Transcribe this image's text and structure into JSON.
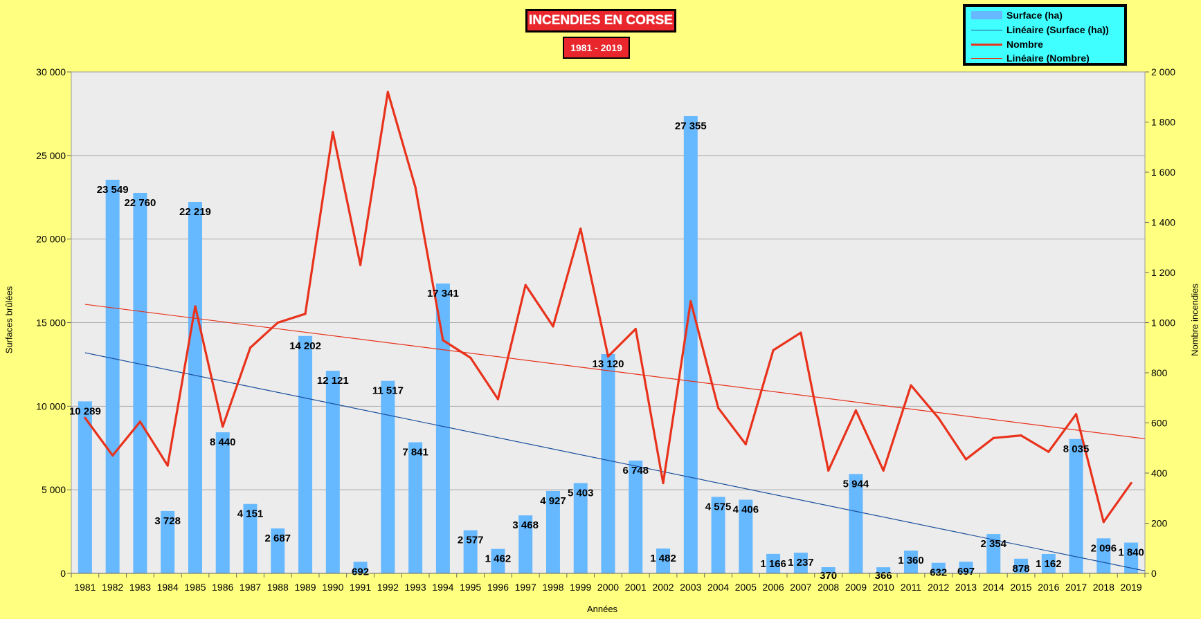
{
  "chart_data": {
    "type": "bar",
    "title": "INCENDIES EN CORSE",
    "subtitle": "1981 - 2019",
    "xlabel": "Années",
    "ylabel": "Surfaces brûlées",
    "ylabel_right": "Nombre incendies",
    "ylim": [
      0,
      30000
    ],
    "ylim_right": [
      0,
      2000
    ],
    "yticks": [
      "0",
      "5 000",
      "10 000",
      "15 000",
      "20 000",
      "25 000",
      "30 000"
    ],
    "yticks_right": [
      "0",
      "200",
      "400",
      "600",
      "800",
      "1 000",
      "1 200",
      "1 400",
      "1 600",
      "1 800",
      "2 000"
    ],
    "grid": true,
    "legend_position": "top-right",
    "categories": [
      "1981",
      "1982",
      "1983",
      "1984",
      "1985",
      "1986",
      "1987",
      "1988",
      "1989",
      "1990",
      "1991",
      "1992",
      "1993",
      "1994",
      "1995",
      "1996",
      "1997",
      "1998",
      "1999",
      "2000",
      "2001",
      "2002",
      "2003",
      "2004",
      "2005",
      "2006",
      "2007",
      "2008",
      "2009",
      "2010",
      "2011",
      "2012",
      "2013",
      "2014",
      "2015",
      "2016",
      "2017",
      "2018",
      "2019"
    ],
    "series": [
      {
        "name": "Surface (ha)",
        "type": "bar",
        "axis": "left",
        "color": "#66b8ff",
        "values": [
          10289,
          23549,
          22760,
          3728,
          22219,
          8440,
          4151,
          2687,
          14202,
          12121,
          692,
          11517,
          7841,
          17341,
          2577,
          1462,
          3468,
          4927,
          5403,
          13120,
          6748,
          1482,
          27355,
          4575,
          4406,
          1166,
          1237,
          370,
          5944,
          366,
          1360,
          632,
          697,
          2354,
          878,
          1162,
          8035,
          2096,
          1840
        ],
        "labels": [
          "10 289",
          "23 549",
          "22 760",
          "3 728",
          "22 219",
          "8 440",
          "4 151",
          "2 687",
          "14 202",
          "12 121",
          "692",
          "11 517",
          "7 841",
          "17 341",
          "2 577",
          "1 462",
          "3 468",
          "4 927",
          "5 403",
          "13 120",
          "6 748",
          "1 482",
          "27 355",
          "4 575",
          "4 406",
          "1 166",
          "1 237",
          "370",
          "5 944",
          "366",
          "1 360",
          "632",
          "697",
          "2 354",
          "878",
          "1 162",
          "8 035",
          "2 096",
          "1 840"
        ]
      },
      {
        "name": "Linéaire (Surface (ha))",
        "type": "trendline",
        "axis": "left",
        "color": "#1a4f9c",
        "start": 13200,
        "end": 150
      },
      {
        "name": "Nombre",
        "type": "line",
        "axis": "right",
        "color": "#e8321c",
        "values": [
          620,
          470,
          605,
          430,
          1065,
          585,
          900,
          1000,
          1035,
          1760,
          1230,
          1920,
          1540,
          930,
          860,
          695,
          1150,
          985,
          1375,
          865,
          975,
          360,
          1085,
          660,
          515,
          890,
          960,
          410,
          650,
          410,
          750,
          620,
          455,
          540,
          550,
          485,
          635,
          205,
          360
        ]
      },
      {
        "name": "Linéaire (Nombre)",
        "type": "trendline",
        "axis": "right",
        "color": "#e8321c",
        "start": 1073,
        "end": 537
      }
    ]
  }
}
